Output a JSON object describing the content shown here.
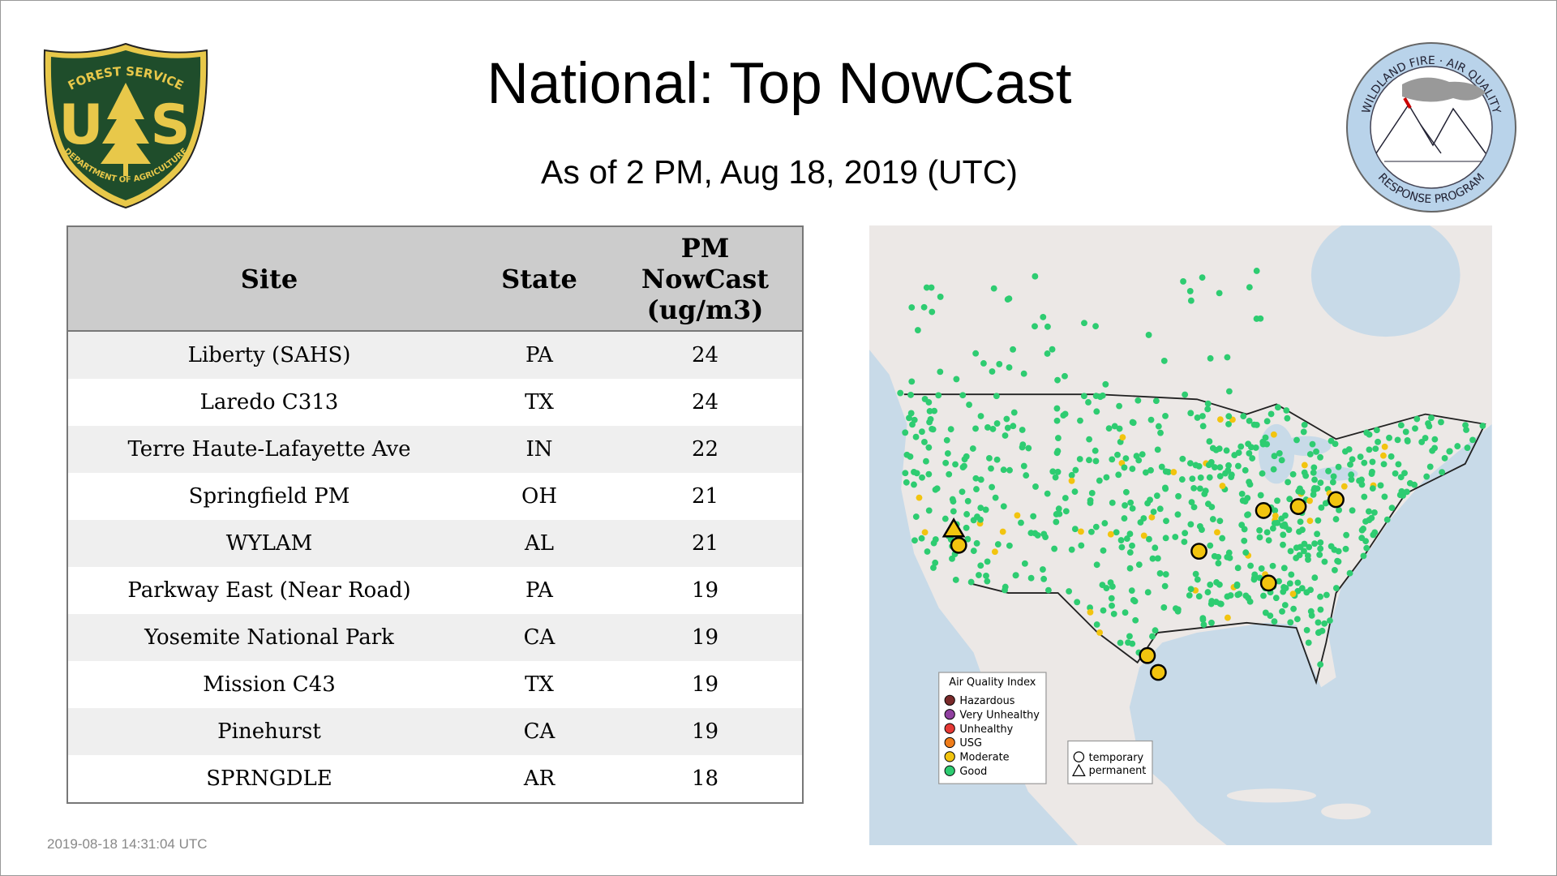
{
  "header": {
    "title": "National: Top NowCast",
    "subtitle": "As of  2 PM, Aug 18, 2019 (UTC)"
  },
  "logos": {
    "left": {
      "top_text": "FOREST SERVICE",
      "letters": [
        "U",
        "S"
      ],
      "bottom_text": "DEPARTMENT OF AGRICULTURE"
    },
    "right": {
      "top_text": "WILDLAND FIRE · AIR QUALITY",
      "bottom_text": "RESPONSE PROGRAM"
    }
  },
  "table": {
    "columns": [
      "Site",
      "State",
      "PM NowCast (ug/m3)"
    ],
    "rows": [
      [
        "Liberty (SAHS)",
        "PA",
        24
      ],
      [
        "Laredo C313",
        "TX",
        24
      ],
      [
        "Terre Haute-Lafayette Ave",
        "IN",
        22
      ],
      [
        "Springfield PM",
        "OH",
        21
      ],
      [
        "WYLAM",
        "AL",
        21
      ],
      [
        "Parkway East (Near Road)",
        "PA",
        19
      ],
      [
        "Yosemite National Park",
        "CA",
        19
      ],
      [
        "Mission C43",
        "TX",
        19
      ],
      [
        "Pinehurst",
        "CA",
        19
      ],
      [
        "SPRNGDLE",
        "AR",
        18
      ]
    ]
  },
  "map": {
    "legend": {
      "title": "Air Quality Index",
      "items": [
        {
          "label": "Hazardous",
          "color": "#7a2a2a"
        },
        {
          "label": "Very Unhealthy",
          "color": "#9040a0"
        },
        {
          "label": "Unhealthy",
          "color": "#e53935"
        },
        {
          "label": "USG",
          "color": "#f07d1a"
        },
        {
          "label": "Moderate",
          "color": "#f2c40f"
        },
        {
          "label": "Good",
          "color": "#2ecc71"
        }
      ]
    },
    "shape_legend": [
      "temporary",
      "permanent"
    ]
  },
  "footer": {
    "timestamp": "2019-08-18 14:31:04 UTC"
  }
}
